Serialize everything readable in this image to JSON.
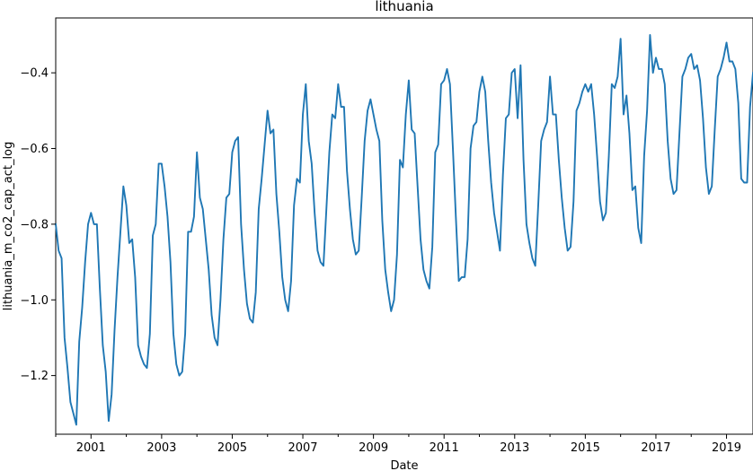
{
  "chart_data": {
    "type": "line",
    "title": "lithuania",
    "xlabel": "Date",
    "ylabel": "lithuania_m_co2_cap_act_log",
    "xlim": [
      2000.0,
      2019.75
    ],
    "ylim": [
      -1.355,
      -0.255
    ],
    "x_ticks": [
      "2001",
      "2003",
      "2005",
      "2007",
      "2009",
      "2011",
      "2013",
      "2015",
      "2017",
      "2019"
    ],
    "y_ticks": [
      "−1.2",
      "−1.0",
      "−0.8",
      "−0.6",
      "−0.4"
    ],
    "grid": false,
    "legend": "none",
    "color": "#1f77b4",
    "series": [
      {
        "x_start": 2000.0,
        "x_step_months": 1,
        "values": [
          -0.8,
          -0.87,
          -0.89,
          -1.1,
          -1.18,
          -1.27,
          -1.3,
          -1.33,
          -1.11,
          -1.02,
          -0.9,
          -0.8,
          -0.77,
          -0.8,
          -0.8,
          -0.97,
          -1.12,
          -1.19,
          -1.32,
          -1.25,
          -1.08,
          -0.94,
          -0.82,
          -0.7,
          -0.75,
          -0.85,
          -0.84,
          -0.94,
          -1.12,
          -1.15,
          -1.17,
          -1.18,
          -1.09,
          -0.83,
          -0.8,
          -0.64,
          -0.64,
          -0.7,
          -0.78,
          -0.9,
          -1.09,
          -1.17,
          -1.2,
          -1.19,
          -1.09,
          -0.82,
          -0.82,
          -0.78,
          -0.61,
          -0.73,
          -0.76,
          -0.84,
          -0.92,
          -1.04,
          -1.1,
          -1.12,
          -1.0,
          -0.84,
          -0.73,
          -0.72,
          -0.61,
          -0.58,
          -0.57,
          -0.8,
          -0.92,
          -1.01,
          -1.05,
          -1.06,
          -0.98,
          -0.76,
          -0.68,
          -0.59,
          -0.5,
          -0.56,
          -0.55,
          -0.72,
          -0.82,
          -0.94,
          -1.0,
          -1.03,
          -0.95,
          -0.75,
          -0.68,
          -0.69,
          -0.51,
          -0.43,
          -0.58,
          -0.64,
          -0.77,
          -0.87,
          -0.9,
          -0.91,
          -0.76,
          -0.61,
          -0.51,
          -0.52,
          -0.43,
          -0.49,
          -0.49,
          -0.66,
          -0.76,
          -0.84,
          -0.88,
          -0.87,
          -0.73,
          -0.58,
          -0.5,
          -0.47,
          -0.51,
          -0.55,
          -0.58,
          -0.79,
          -0.92,
          -0.98,
          -1.03,
          -1.0,
          -0.88,
          -0.63,
          -0.65,
          -0.51,
          -0.42,
          -0.55,
          -0.56,
          -0.7,
          -0.84,
          -0.92,
          -0.95,
          -0.97,
          -0.86,
          -0.61,
          -0.59,
          -0.43,
          -0.42,
          -0.39,
          -0.43,
          -0.6,
          -0.78,
          -0.95,
          -0.94,
          -0.94,
          -0.84,
          -0.6,
          -0.54,
          -0.53,
          -0.45,
          -0.41,
          -0.45,
          -0.58,
          -0.69,
          -0.77,
          -0.82,
          -0.87,
          -0.67,
          -0.52,
          -0.51,
          -0.4,
          -0.39,
          -0.52,
          -0.38,
          -0.63,
          -0.8,
          -0.85,
          -0.89,
          -0.91,
          -0.75,
          -0.58,
          -0.55,
          -0.53,
          -0.41,
          -0.51,
          -0.51,
          -0.63,
          -0.73,
          -0.81,
          -0.87,
          -0.86,
          -0.74,
          -0.5,
          -0.48,
          -0.45,
          -0.43,
          -0.45,
          -0.43,
          -0.51,
          -0.62,
          -0.74,
          -0.79,
          -0.77,
          -0.62,
          -0.43,
          -0.44,
          -0.41,
          -0.31,
          -0.51,
          -0.46,
          -0.56,
          -0.71,
          -0.7,
          -0.81,
          -0.85,
          -0.62,
          -0.5,
          -0.3,
          -0.4,
          -0.36,
          -0.39,
          -0.39,
          -0.43,
          -0.58,
          -0.68,
          -0.72,
          -0.71,
          -0.56,
          -0.41,
          -0.39,
          -0.36,
          -0.35,
          -0.39,
          -0.38,
          -0.42,
          -0.52,
          -0.65,
          -0.72,
          -0.7,
          -0.55,
          -0.41,
          -0.39,
          -0.36,
          -0.32,
          -0.37,
          -0.37,
          -0.39,
          -0.48,
          -0.68,
          -0.69,
          -0.69,
          -0.49,
          -0.4
        ]
      }
    ]
  }
}
